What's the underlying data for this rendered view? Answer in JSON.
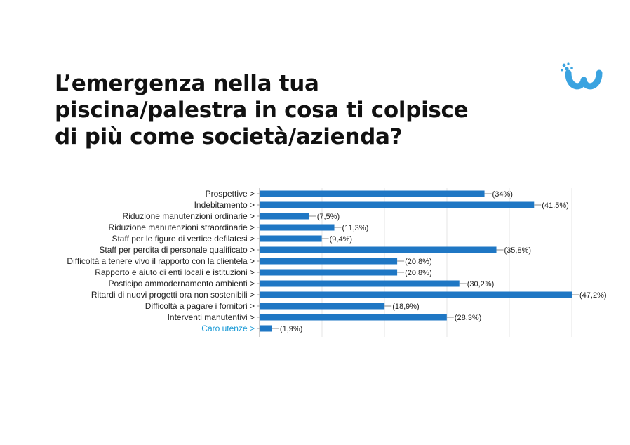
{
  "title_lines": [
    "L’emergenza nella tua",
    "piscina/palestra in cosa ti colpisce",
    "di più come società/azienda?"
  ],
  "colors": {
    "bar": "#1f77c4",
    "category_text": "#222222",
    "highlight_text": "#1a9ad6",
    "grid": "#e4e4e4",
    "logo": "#3aa3e0"
  },
  "logo_icon": "w-brand-logo-icon",
  "chart_data": {
    "type": "bar",
    "orientation": "horizontal",
    "categories": [
      "Prospettive >",
      "Indebitamento >",
      "Riduzione manutenzioni ordinarie >",
      "Riduzione manutenzioni straordinarie >",
      "Staff per le figure di vertice defilatesi >",
      "Staff per perdita di personale qualificato >",
      "Difficoltà a tenere vivo il rapporto con la clientela >",
      "Rapporto e aiuto di enti locali e istituzioni >",
      "Posticipo ammodernamento ambienti >",
      "Ritardi di nuovi progetti ora non sostenibili >",
      "Difficoltà a pagare i fornitori >",
      "Interventi manutentivi >",
      "Caro utenze >"
    ],
    "values": [
      34,
      41.5,
      7.5,
      11.3,
      9.4,
      35.8,
      20.8,
      20.8,
      30.2,
      47.2,
      18.9,
      28.3,
      1.9
    ],
    "value_labels": [
      "(34%)",
      "(41,5%)",
      "(7,5%)",
      "(11,3%)",
      "(9,4%)",
      "(35,8%)",
      "(20,8%)",
      "(20,8%)",
      "(30,2%)",
      "(47,2%)",
      "(18,9%)",
      "(28,3%)",
      "(1,9%)"
    ],
    "highlighted_categories": [
      "Caro utenze >"
    ],
    "xlim": [
      0,
      47.2
    ],
    "grid": true,
    "legend": "none"
  }
}
